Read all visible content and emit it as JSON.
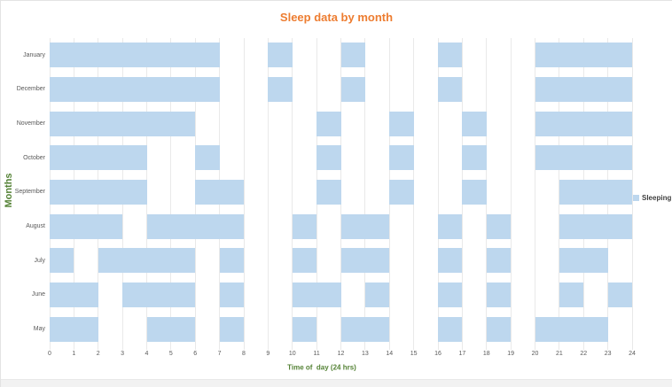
{
  "page": {
    "background": "#FFFFFF",
    "footer_strip_color": "#F2F2F2"
  },
  "chart_data": {
    "type": "bar",
    "subtype": "horizontal-interval-gantt",
    "title": "Sleep data by month",
    "title_color": "#ED7D31",
    "xlabel": "Time of  day (24 hrs)",
    "ylabel": "Months",
    "axis_label_color": "#548235",
    "bar_color": "#BDD7EE",
    "gridline_color": "#E9E9E9",
    "tick_label_color": "#595959",
    "xlim": [
      0,
      24
    ],
    "x_ticks": [
      0,
      1,
      2,
      3,
      4,
      5,
      6,
      7,
      8,
      9,
      10,
      11,
      12,
      13,
      14,
      15,
      16,
      17,
      18,
      19,
      20,
      21,
      22,
      23,
      24
    ],
    "x_unit": "hour of day",
    "grid": "vertical-only",
    "legend": {
      "label": "Sleeping",
      "marker_color": "#BDD7EE",
      "text_color": "#3F3F3F",
      "position": "right-middle"
    },
    "y_axis_order_bottom_to_top": [
      "May",
      "June",
      "July",
      "August",
      "September",
      "October",
      "November",
      "December",
      "January"
    ],
    "rows_top_to_bottom": [
      {
        "month": "January",
        "sleep_intervals": [
          [
            0,
            7
          ],
          [
            9,
            10
          ],
          [
            12,
            13
          ],
          [
            16,
            17
          ],
          [
            20,
            24
          ]
        ]
      },
      {
        "month": "December",
        "sleep_intervals": [
          [
            0,
            7
          ],
          [
            9,
            10
          ],
          [
            12,
            13
          ],
          [
            16,
            17
          ],
          [
            20,
            24
          ]
        ]
      },
      {
        "month": "November",
        "sleep_intervals": [
          [
            0,
            6
          ],
          [
            11,
            12
          ],
          [
            14,
            15
          ],
          [
            17,
            18
          ],
          [
            20,
            24
          ]
        ]
      },
      {
        "month": "October",
        "sleep_intervals": [
          [
            0,
            4
          ],
          [
            6,
            7
          ],
          [
            11,
            12
          ],
          [
            14,
            15
          ],
          [
            17,
            18
          ],
          [
            20,
            24
          ]
        ]
      },
      {
        "month": "September",
        "sleep_intervals": [
          [
            0,
            4
          ],
          [
            6,
            8
          ],
          [
            11,
            12
          ],
          [
            14,
            15
          ],
          [
            17,
            18
          ],
          [
            21,
            24
          ]
        ]
      },
      {
        "month": "August",
        "sleep_intervals": [
          [
            0,
            3
          ],
          [
            4,
            8
          ],
          [
            10,
            11
          ],
          [
            12,
            14
          ],
          [
            16,
            17
          ],
          [
            18,
            19
          ],
          [
            21,
            24
          ]
        ]
      },
      {
        "month": "July",
        "sleep_intervals": [
          [
            0,
            1
          ],
          [
            2,
            6
          ],
          [
            7,
            8
          ],
          [
            10,
            11
          ],
          [
            12,
            14
          ],
          [
            16,
            17
          ],
          [
            18,
            19
          ],
          [
            21,
            23
          ]
        ]
      },
      {
        "month": "June",
        "sleep_intervals": [
          [
            0,
            2
          ],
          [
            3,
            6
          ],
          [
            7,
            8
          ],
          [
            10,
            12
          ],
          [
            13,
            14
          ],
          [
            16,
            17
          ],
          [
            18,
            19
          ],
          [
            21,
            22
          ],
          [
            23,
            24
          ]
        ]
      },
      {
        "month": "May",
        "sleep_intervals": [
          [
            0,
            2
          ],
          [
            4,
            6
          ],
          [
            7,
            8
          ],
          [
            10,
            11
          ],
          [
            12,
            14
          ],
          [
            16,
            17
          ],
          [
            18,
            19
          ],
          [
            20,
            23
          ]
        ]
      }
    ]
  }
}
